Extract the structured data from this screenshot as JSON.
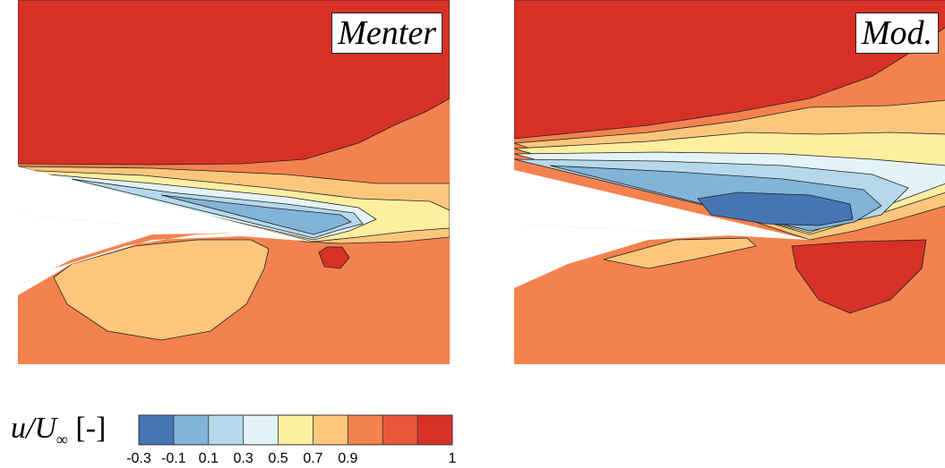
{
  "chart_data": [
    {
      "type": "contour",
      "title": "Menter",
      "colors": {
        "high": "#d73027",
        "mid_high": "#f4824f",
        "mid": "#fcc77c",
        "low_mid": "#feeea0",
        "near_zero": "#e4f3f7",
        "low": "#b5d9ea",
        "lower": "#82b3d8",
        "lowest": "#4575b4"
      }
    },
    {
      "type": "contour",
      "title": "Mod.",
      "colors": {
        "high": "#d73027",
        "mid_high": "#f4824f",
        "mid": "#fcc77c",
        "low_mid": "#feeea0",
        "near_zero": "#e4f3f7",
        "low": "#b5d9ea",
        "lower": "#82b3d8",
        "lowest": "#4575b4"
      }
    }
  ],
  "colorbar": {
    "label_var": "u/U",
    "label_sub": "∞",
    "label_unit": " [-]",
    "ticks": [
      "-0.3",
      "-0.1",
      "0.1",
      "0.3",
      "0.5",
      "0.7",
      "0.9",
      "1"
    ],
    "colors": [
      "#4575b4",
      "#82b3d8",
      "#b5d9ea",
      "#e4f3f7",
      "#feeea0",
      "#fcc77c",
      "#f4824f",
      "#e8573a",
      "#d73027"
    ]
  }
}
